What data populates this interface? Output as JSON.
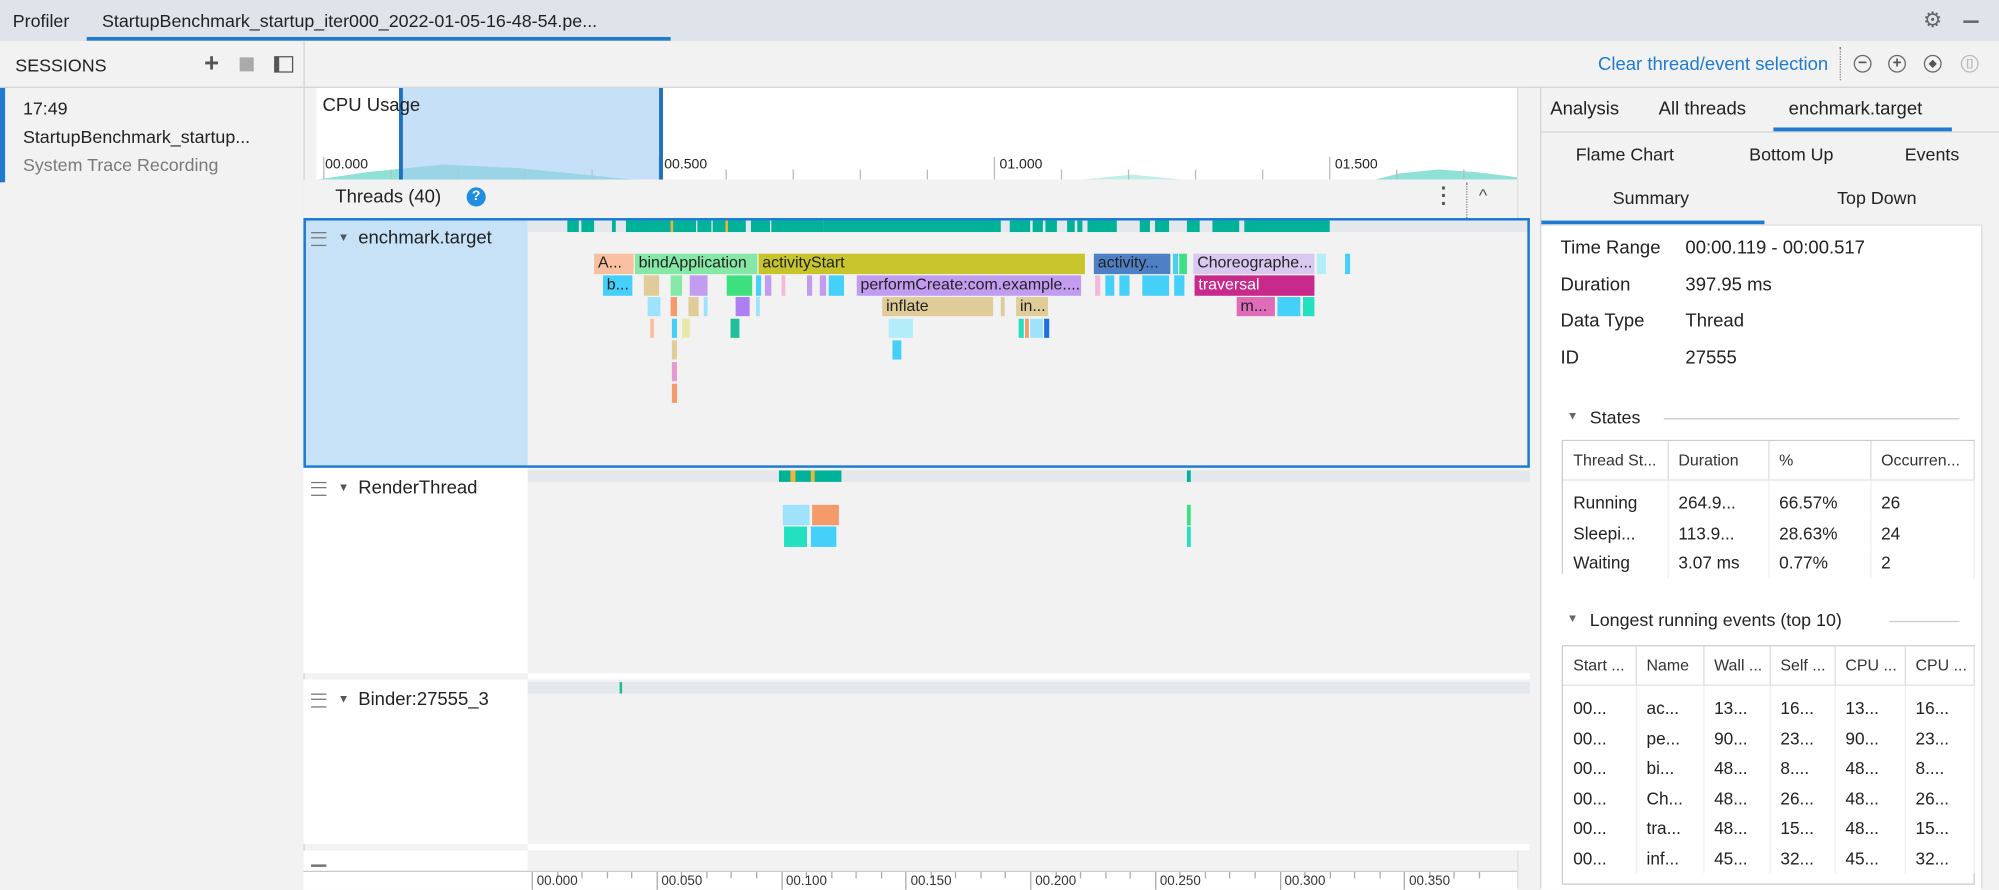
{
  "topbar": {
    "app_label": "Profiler",
    "tab_label": "StartupBenchmark_startup_iter000_2022-01-05-16-48-54.pe...",
    "icons": [
      "gear-icon",
      "minimize-icon"
    ]
  },
  "toolbar": {
    "sessions_label": "SESSIONS",
    "clear_selection_label": "Clear thread/event selection",
    "icons": [
      "plus-icon",
      "stop-icon",
      "panel-toggle-icon",
      "zoom-out-icon",
      "zoom-in-icon",
      "reset-zoom-icon",
      "attach-icon"
    ]
  },
  "session": {
    "time": "17:49",
    "name": "StartupBenchmark_startup...",
    "type": "System Trace Recording"
  },
  "cpu": {
    "label": "CPU Usage",
    "ticks": [
      "00.000",
      "00.500",
      "01.000",
      "01.500"
    ],
    "selection_range_s": [
      0.119,
      0.517
    ]
  },
  "threads": {
    "header": "Threads (40)",
    "rows": [
      {
        "name": "enchmark.target",
        "selected": true
      },
      {
        "name": "RenderThread"
      },
      {
        "name": "Binder:27555_3"
      }
    ],
    "axis_ticks": [
      "00.000",
      "00.050",
      "00.100",
      "00.150",
      "00.200",
      "00.250",
      "00.300",
      "00.350"
    ]
  },
  "flame": {
    "main": [
      {
        "l": "A...",
        "s": 25.1,
        "e": 40.9,
        "d": 0,
        "c": "#f9bfa0"
      },
      {
        "l": "bindApplication",
        "s": 41.4,
        "e": 90.5,
        "d": 0,
        "c": "#86e8a6"
      },
      {
        "l": "activityStart",
        "s": 91.0,
        "e": 222.0,
        "d": 0,
        "c": "#c8c42c"
      },
      {
        "l": "activity...",
        "s": 225.6,
        "e": 256.3,
        "d": 0,
        "c": "#4f7fc4"
      },
      {
        "l": "",
        "s": 257.3,
        "e": 259.3,
        "d": 0,
        "c": "#44d0f8"
      },
      {
        "l": "",
        "s": 259.8,
        "e": 262.9,
        "d": 0,
        "c": "#3de07f"
      },
      {
        "l": "Choreographe...",
        "s": 265.5,
        "e": 314.1,
        "d": 0,
        "c": "#d9c8f0"
      },
      {
        "l": "",
        "s": 315.0,
        "e": 318.7,
        "d": 0,
        "c": "#b3ecfb"
      },
      {
        "l": "",
        "s": 326.3,
        "e": 328.4,
        "d": 0,
        "c": "#44d0f8"
      },
      {
        "l": "b...",
        "s": 28.6,
        "e": 40.4,
        "d": 1,
        "c": "#44d0f8"
      },
      {
        "l": "",
        "s": 45.0,
        "e": 51.2,
        "d": 1,
        "c": "#e0cc99"
      },
      {
        "l": "",
        "s": 55.8,
        "e": 60.4,
        "d": 1,
        "c": "#86e8a6"
      },
      {
        "l": "",
        "s": 63.4,
        "e": 70.6,
        "d": 1,
        "c": "#c29cf0"
      },
      {
        "l": "",
        "s": 78.3,
        "e": 88.5,
        "d": 1,
        "c": "#3de07f"
      },
      {
        "l": "",
        "s": 90.0,
        "e": 92.1,
        "d": 1,
        "c": "#44d0f8"
      },
      {
        "l": "",
        "s": 93.6,
        "e": 96.2,
        "d": 1,
        "c": "#c29cf0"
      },
      {
        "l": "",
        "s": 100.5,
        "e": 101.8,
        "d": 1,
        "c": "#f5b8d8"
      },
      {
        "l": "",
        "s": 110.5,
        "e": 112.5,
        "d": 1,
        "c": "#c29cf0"
      },
      {
        "l": "",
        "s": 115.6,
        "e": 118.2,
        "d": 1,
        "c": "#c29cf0"
      },
      {
        "l": "",
        "s": 119.2,
        "e": 125.3,
        "d": 1,
        "c": "#44d0f8"
      },
      {
        "l": "performCreate:com.example....",
        "s": 130.4,
        "e": 220.5,
        "d": 1,
        "c": "#c29cf0"
      },
      {
        "l": "",
        "s": 226.0,
        "e": 228.0,
        "d": 1,
        "c": "#f5b8d8"
      },
      {
        "l": "",
        "s": 230.0,
        "e": 234.0,
        "d": 1,
        "c": "#44d0f8"
      },
      {
        "l": "",
        "s": 236.0,
        "e": 240.0,
        "d": 1,
        "c": "#44d0f8"
      },
      {
        "l": "",
        "s": 245.0,
        "e": 256.0,
        "d": 1,
        "c": "#44d0f8"
      },
      {
        "l": "",
        "s": 258.0,
        "e": 262.0,
        "d": 1,
        "c": "#44d0f8"
      },
      {
        "l": "traversal",
        "s": 266.0,
        "e": 314.1,
        "d": 1,
        "c": "#c8298a",
        "w": true
      },
      {
        "l": "",
        "s": 46.5,
        "e": 51.7,
        "d": 2,
        "c": "#9ee3fb"
      },
      {
        "l": "",
        "s": 55.8,
        "e": 58.3,
        "d": 2,
        "c": "#f59a6b"
      },
      {
        "l": "",
        "s": 62.9,
        "e": 67.0,
        "d": 2,
        "c": "#e0cc99"
      },
      {
        "l": "",
        "s": 69.0,
        "e": 70.5,
        "d": 2,
        "c": "#9ee3fb"
      },
      {
        "l": "",
        "s": 81.8,
        "e": 87.5,
        "d": 2,
        "c": "#ad7ff0"
      },
      {
        "l": "",
        "s": 90.0,
        "e": 91.5,
        "d": 2,
        "c": "#9ee3fb"
      },
      {
        "l": "inflate",
        "s": 140.7,
        "e": 185.2,
        "d": 2,
        "c": "#e0cc99"
      },
      {
        "l": "",
        "s": 188.0,
        "e": 190.0,
        "d": 2,
        "c": "#e0cc99"
      },
      {
        "l": "in...",
        "s": 194.4,
        "e": 207.2,
        "d": 2,
        "c": "#e0cc99"
      },
      {
        "l": "m...",
        "s": 282.9,
        "e": 298.2,
        "d": 2,
        "c": "#e06bb8"
      },
      {
        "l": "",
        "s": 299.2,
        "e": 308.4,
        "d": 2,
        "c": "#44d0f8"
      },
      {
        "l": "",
        "s": 309.5,
        "e": 314.1,
        "d": 2,
        "c": "#22e0c0"
      },
      {
        "l": "",
        "s": 47.6,
        "e": 49.1,
        "d": 3,
        "c": "#f9bfa0"
      },
      {
        "l": "",
        "s": 56.3,
        "e": 58.3,
        "d": 3,
        "c": "#44d0f8"
      },
      {
        "l": "",
        "s": 60.5,
        "e": 63.5,
        "d": 3,
        "c": "#e8e8a8"
      },
      {
        "l": "",
        "s": 79.8,
        "e": 83.4,
        "d": 3,
        "c": "#1fbf9a"
      },
      {
        "l": "",
        "s": 143.2,
        "e": 153.0,
        "d": 3,
        "c": "#b3ecfb"
      },
      {
        "l": "",
        "s": 195.5,
        "e": 197.5,
        "d": 3,
        "c": "#22e0c0"
      },
      {
        "l": "",
        "s": 198.0,
        "e": 199.5,
        "d": 3,
        "c": "#f59a6b"
      },
      {
        "l": "",
        "s": 200.0,
        "e": 205.0,
        "d": 3,
        "c": "#9ee3fb"
      },
      {
        "l": "",
        "s": 205.5,
        "e": 207.5,
        "d": 3,
        "c": "#1f6fe0"
      },
      {
        "l": "",
        "s": 56.3,
        "e": 58.3,
        "d": 4,
        "c": "#e0cc99"
      },
      {
        "l": "",
        "s": 145.0,
        "e": 148.5,
        "d": 4,
        "c": "#44d0f8"
      },
      {
        "l": "",
        "s": 56.3,
        "e": 58.3,
        "d": 5,
        "c": "#e89ad0"
      },
      {
        "l": "",
        "s": 56.3,
        "e": 58.3,
        "d": 6,
        "c": "#f59a6b"
      }
    ],
    "render": [
      {
        "l": "",
        "s": 100.8,
        "e": 111.5,
        "d": 0,
        "c": "#9ee3fb"
      },
      {
        "l": "",
        "s": 112.5,
        "e": 123.3,
        "d": 0,
        "c": "#f59a6b"
      },
      {
        "l": "",
        "s": 263.0,
        "e": 264.5,
        "d": 0,
        "c": "#3de07f"
      },
      {
        "l": "",
        "s": 101.5,
        "e": 110.5,
        "d": 1,
        "c": "#22e0c0"
      },
      {
        "l": "",
        "s": 112.0,
        "e": 122.5,
        "d": 1,
        "c": "#44d0f8"
      },
      {
        "l": "",
        "s": 263.0,
        "e": 264.5,
        "d": 1,
        "c": "#22e0c0"
      }
    ],
    "main_state": [
      [
        14.5,
        19
      ],
      [
        20,
        25
      ],
      [
        32,
        34
      ],
      [
        38,
        66
      ],
      [
        66.5,
        72
      ],
      [
        72.5,
        86
      ],
      [
        88,
        95.5
      ],
      [
        96,
        117
      ],
      [
        117,
        188
      ],
      [
        192,
        200
      ],
      [
        201,
        205
      ],
      [
        206,
        211
      ],
      [
        215,
        218
      ],
      [
        219,
        221
      ],
      [
        223,
        235
      ],
      [
        244,
        248
      ],
      [
        250,
        256
      ],
      [
        263,
        268
      ],
      [
        273,
        284
      ],
      [
        286,
        320
      ]
    ],
    "render_state": [
      [
        99.2,
        124.3
      ],
      [
        263,
        264.5
      ]
    ],
    "binder_state": [
      [
        35.3,
        36.5
      ]
    ]
  },
  "right": {
    "tabs": [
      "Analysis",
      "All threads",
      "enchmark.target"
    ],
    "subtabs": [
      "Flame Chart",
      "Bottom Up",
      "Events",
      "Summary",
      "Top Down"
    ],
    "summary": [
      {
        "k": "Time Range",
        "v": "00:00.119 - 00:00.517"
      },
      {
        "k": "Duration",
        "v": "397.95 ms"
      },
      {
        "k": "Data Type",
        "v": "Thread"
      },
      {
        "k": "ID",
        "v": "27555"
      }
    ],
    "states_title": "States",
    "states_cols": [
      "Thread St...",
      "Duration",
      "%",
      "Occurren..."
    ],
    "states_rows": [
      [
        "Running",
        "264.9...",
        "66.57%",
        "26"
      ],
      [
        "Sleepi...",
        "113.9...",
        "28.63%",
        "24"
      ],
      [
        "Waiting",
        "3.07 ms",
        "0.77%",
        "2"
      ]
    ],
    "events_title": "Longest running events (top 10)",
    "events_cols": [
      "Start ...",
      "Name",
      "Wall ...",
      "Self ...",
      "CPU ...",
      "CPU ..."
    ],
    "events_rows": [
      [
        "00...",
        "ac...",
        "13...",
        "16...",
        "13...",
        "16..."
      ],
      [
        "00...",
        "pe...",
        "90...",
        "23...",
        "90...",
        "23..."
      ],
      [
        "00...",
        "bi...",
        "48...",
        "8....",
        "48...",
        "8...."
      ],
      [
        "00...",
        "Ch...",
        "48...",
        "26...",
        "48...",
        "26..."
      ],
      [
        "00...",
        "tra...",
        "48...",
        "15...",
        "48...",
        "15..."
      ],
      [
        "00...",
        "inf...",
        "45...",
        "32...",
        "45...",
        "32..."
      ]
    ]
  },
  "colors": {
    "accent": "#1f7bd1",
    "selection": "#c7e2f7",
    "state_running": "#00b398",
    "cpu_area": "#8fe0d6"
  }
}
